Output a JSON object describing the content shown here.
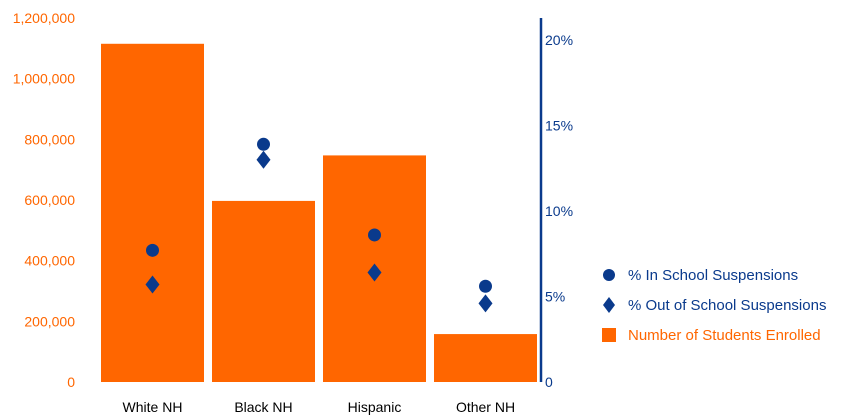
{
  "colors": {
    "bar": "#ff6600",
    "marker": "#0a3a8c",
    "left_axis_text": "#ff6600",
    "right_axis_line": "#0a3a8c",
    "right_axis_text": "#0a3a8c",
    "category_text": "#000000",
    "legend_enrolled_text": "#ff6600",
    "legend_text": "#0a3a8c"
  },
  "chart_data": {
    "type": "bar",
    "categories": [
      "White NH",
      "Black NH",
      "Hispanic",
      "Other NH"
    ],
    "left_axis": {
      "ylim": [
        0,
        1200000
      ],
      "ticks": [
        0,
        200000,
        400000,
        600000,
        800000,
        1000000,
        1200000
      ],
      "tick_labels": [
        "0",
        "200,000",
        "400,000",
        "600,000",
        "800,000",
        "1,000,000",
        "1,200,000"
      ]
    },
    "right_axis": {
      "ylim": [
        0,
        20
      ],
      "ticks": [
        0,
        5,
        10,
        15,
        20
      ],
      "tick_labels": [
        "0",
        "5%",
        "10%",
        "15%",
        "20%"
      ]
    },
    "series": [
      {
        "name": "Number of Students Enrolled",
        "type": "bar",
        "axis": "left",
        "values": [
          1115000,
          597000,
          747000,
          158000
        ]
      },
      {
        "name": "% In School Suspensions",
        "type": "scatter",
        "marker": "circle",
        "axis": "right",
        "values": [
          7.7,
          13.9,
          8.6,
          5.6
        ]
      },
      {
        "name": "% Out of School Suspensions",
        "type": "scatter",
        "marker": "diamond",
        "axis": "right",
        "values": [
          5.7,
          13.0,
          6.4,
          4.6
        ]
      }
    ],
    "legend_position": "right",
    "grid": false
  },
  "legend": {
    "items": [
      {
        "label": "% In School Suspensions",
        "marker": "circle"
      },
      {
        "label": "% Out of School Suspensions",
        "marker": "diamond"
      },
      {
        "label": "Number of Students Enrolled",
        "marker": "square"
      }
    ]
  }
}
